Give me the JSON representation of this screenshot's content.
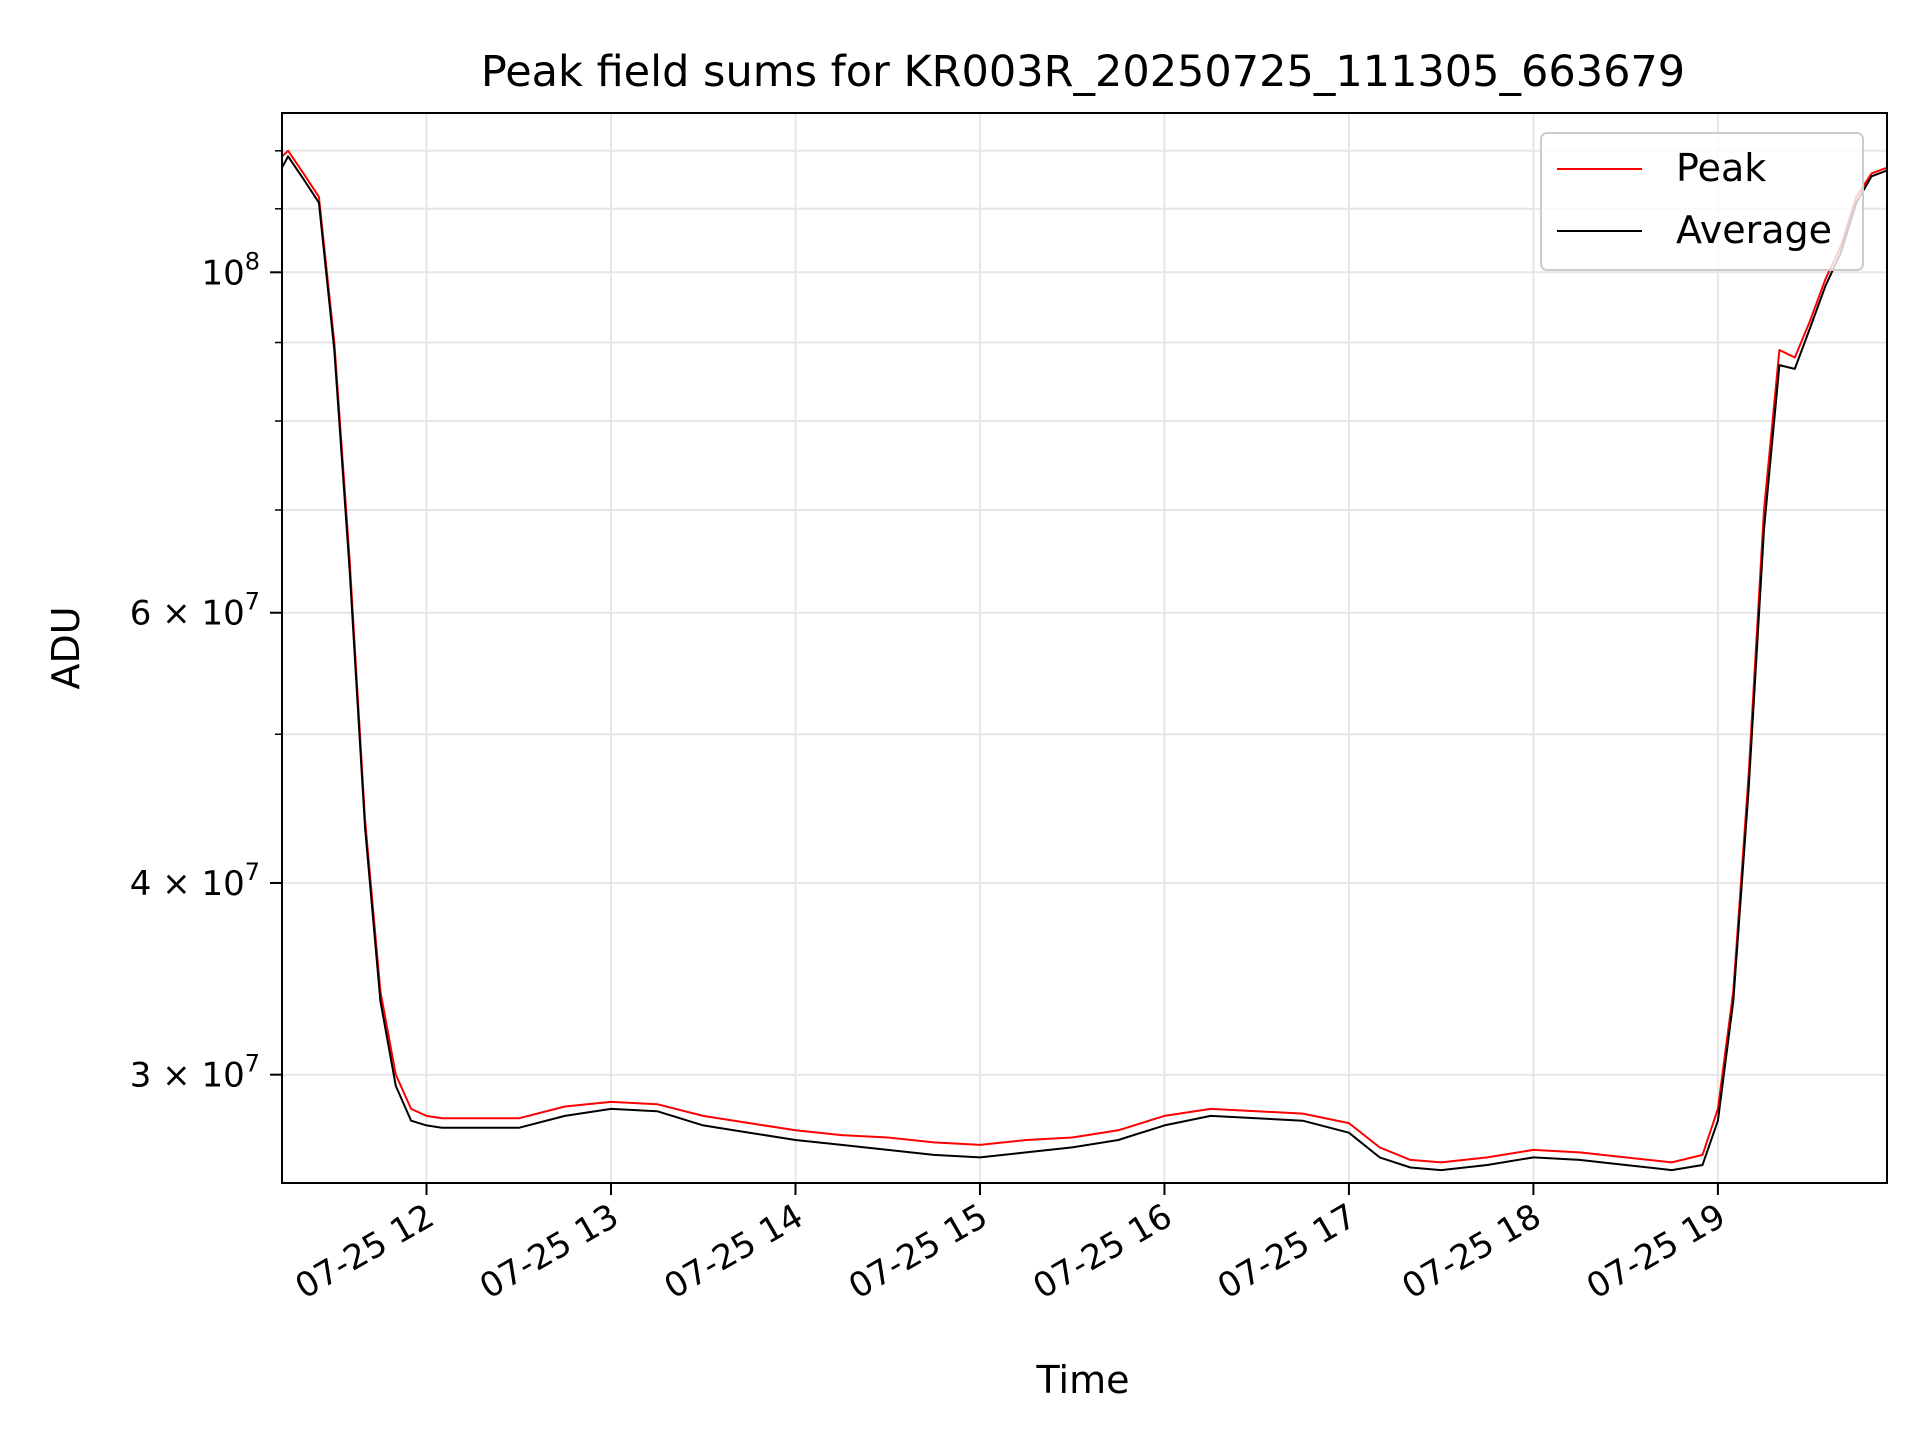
{
  "chart_data": {
    "type": "line",
    "title": "Peak field sums for KR003R_20250725_111305_663679",
    "xlabel": "Time",
    "ylabel": "ADU",
    "yscale": "log",
    "xlim": [
      "2025-07-25 11:13",
      "2025-07-25 19:55"
    ],
    "ylim": [
      25500000,
      127000000
    ],
    "grid": true,
    "legend": {
      "placement": "top-right",
      "entries": [
        "Peak",
        "Average"
      ]
    },
    "x_ticks": [
      "07-25 12",
      "07-25 13",
      "07-25 14",
      "07-25 15",
      "07-25 16",
      "07-25 17",
      "07-25 18",
      "07-25 19"
    ],
    "y_ticks": [
      {
        "value": 100000000,
        "base": "10",
        "exp": "8"
      },
      {
        "value": 60000000,
        "base": "6 × 10",
        "exp": "7"
      },
      {
        "value": 40000000,
        "base": "4 × 10",
        "exp": "7"
      },
      {
        "value": 30000000,
        "base": "3 × 10",
        "exp": "7"
      }
    ],
    "x": [
      "2025-07-25 11:13",
      "2025-07-25 11:15",
      "2025-07-25 11:20",
      "2025-07-25 11:25",
      "2025-07-25 11:30",
      "2025-07-25 11:35",
      "2025-07-25 11:40",
      "2025-07-25 11:45",
      "2025-07-25 11:50",
      "2025-07-25 11:55",
      "2025-07-25 12:00",
      "2025-07-25 12:05",
      "2025-07-25 12:15",
      "2025-07-25 12:30",
      "2025-07-25 12:45",
      "2025-07-25 13:00",
      "2025-07-25 13:15",
      "2025-07-25 13:30",
      "2025-07-25 13:45",
      "2025-07-25 14:00",
      "2025-07-25 14:15",
      "2025-07-25 14:30",
      "2025-07-25 14:45",
      "2025-07-25 15:00",
      "2025-07-25 15:15",
      "2025-07-25 15:30",
      "2025-07-25 15:45",
      "2025-07-25 16:00",
      "2025-07-25 16:15",
      "2025-07-25 16:30",
      "2025-07-25 16:45",
      "2025-07-25 17:00",
      "2025-07-25 17:10",
      "2025-07-25 17:20",
      "2025-07-25 17:30",
      "2025-07-25 17:45",
      "2025-07-25 18:00",
      "2025-07-25 18:15",
      "2025-07-25 18:30",
      "2025-07-25 18:45",
      "2025-07-25 18:55",
      "2025-07-25 19:00",
      "2025-07-25 19:05",
      "2025-07-25 19:10",
      "2025-07-25 19:15",
      "2025-07-25 19:20",
      "2025-07-25 19:25",
      "2025-07-25 19:30",
      "2025-07-25 19:35",
      "2025-07-25 19:40",
      "2025-07-25 19:45",
      "2025-07-25 19:50",
      "2025-07-25 19:55"
    ],
    "series": [
      {
        "name": "Peak",
        "color": "#ff0000",
        "values": [
          119000000,
          120000000,
          116000000,
          112000000,
          90000000,
          65000000,
          44000000,
          34000000,
          30000000,
          28500000,
          28200000,
          28100000,
          28100000,
          28100000,
          28600000,
          28800000,
          28700000,
          28200000,
          27900000,
          27600000,
          27400000,
          27300000,
          27100000,
          27000000,
          27200000,
          27300000,
          27600000,
          28200000,
          28500000,
          28400000,
          28300000,
          27900000,
          26900000,
          26400000,
          26300000,
          26500000,
          26800000,
          26700000,
          26500000,
          26300000,
          26600000,
          28500000,
          34000000,
          47000000,
          70000000,
          89000000,
          88000000,
          93000000,
          99000000,
          104000000,
          112000000,
          116000000,
          117000000
        ]
      },
      {
        "name": "Average",
        "color": "#000000",
        "values": [
          117000000,
          119000000,
          115000000,
          111000000,
          89000000,
          64000000,
          43500000,
          33500000,
          29500000,
          28000000,
          27800000,
          27700000,
          27700000,
          27700000,
          28200000,
          28500000,
          28400000,
          27800000,
          27500000,
          27200000,
          27000000,
          26800000,
          26600000,
          26500000,
          26700000,
          26900000,
          27200000,
          27800000,
          28200000,
          28100000,
          28000000,
          27500000,
          26500000,
          26100000,
          26000000,
          26200000,
          26500000,
          26400000,
          26200000,
          26000000,
          26200000,
          28000000,
          33500000,
          46000000,
          68000000,
          87000000,
          86500000,
          92000000,
          98000000,
          103000000,
          111000000,
          115500000,
          116500000
        ]
      }
    ]
  }
}
